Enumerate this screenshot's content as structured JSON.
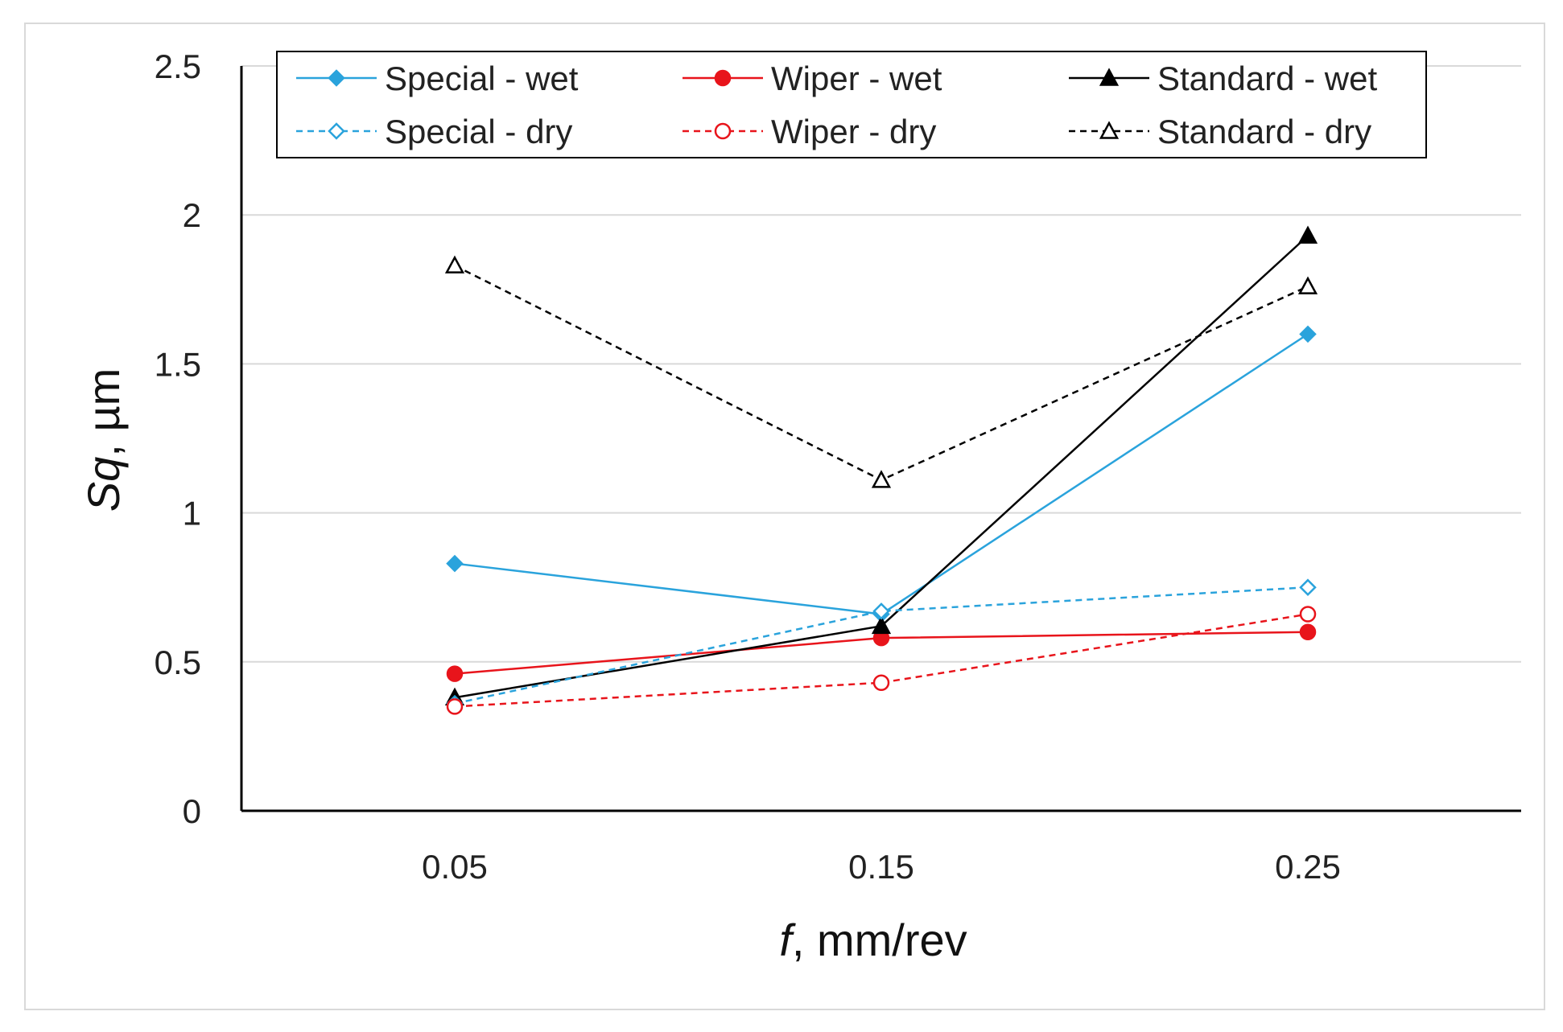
{
  "chart_data": {
    "type": "line",
    "xlabel_italic": "f",
    "xlabel_rest": ", mm/rev",
    "ylabel_italic": "Sq",
    "ylabel_rest": ", µm",
    "categories": [
      "0.05",
      "0.15",
      "0.25"
    ],
    "yticks": [
      "0",
      "0.5",
      "1",
      "1.5",
      "2",
      "2.5"
    ],
    "ylim": [
      0,
      2.5
    ],
    "grid": "horizontal",
    "legend_position": "top",
    "series": [
      {
        "name": "Special - wet",
        "values": [
          0.83,
          0.66,
          1.6
        ],
        "color": "#2aa3dc",
        "dashed": false,
        "marker": "diamond",
        "filled": true
      },
      {
        "name": "Wiper - wet",
        "values": [
          0.46,
          0.58,
          0.6
        ],
        "color": "#e8141b",
        "dashed": false,
        "marker": "circle",
        "filled": true
      },
      {
        "name": "Standard - wet",
        "values": [
          0.38,
          0.62,
          1.93
        ],
        "color": "#000000",
        "dashed": false,
        "marker": "triangle",
        "filled": true
      },
      {
        "name": "Special - dry",
        "values": [
          0.36,
          0.67,
          0.75
        ],
        "color": "#2aa3dc",
        "dashed": true,
        "marker": "diamond",
        "filled": false
      },
      {
        "name": "Wiper - dry",
        "values": [
          0.35,
          0.43,
          0.66
        ],
        "color": "#e8141b",
        "dashed": true,
        "marker": "circle",
        "filled": false
      },
      {
        "name": "Standard - dry",
        "values": [
          1.83,
          1.11,
          1.76
        ],
        "color": "#000000",
        "dashed": true,
        "marker": "triangle",
        "filled": false
      }
    ]
  }
}
